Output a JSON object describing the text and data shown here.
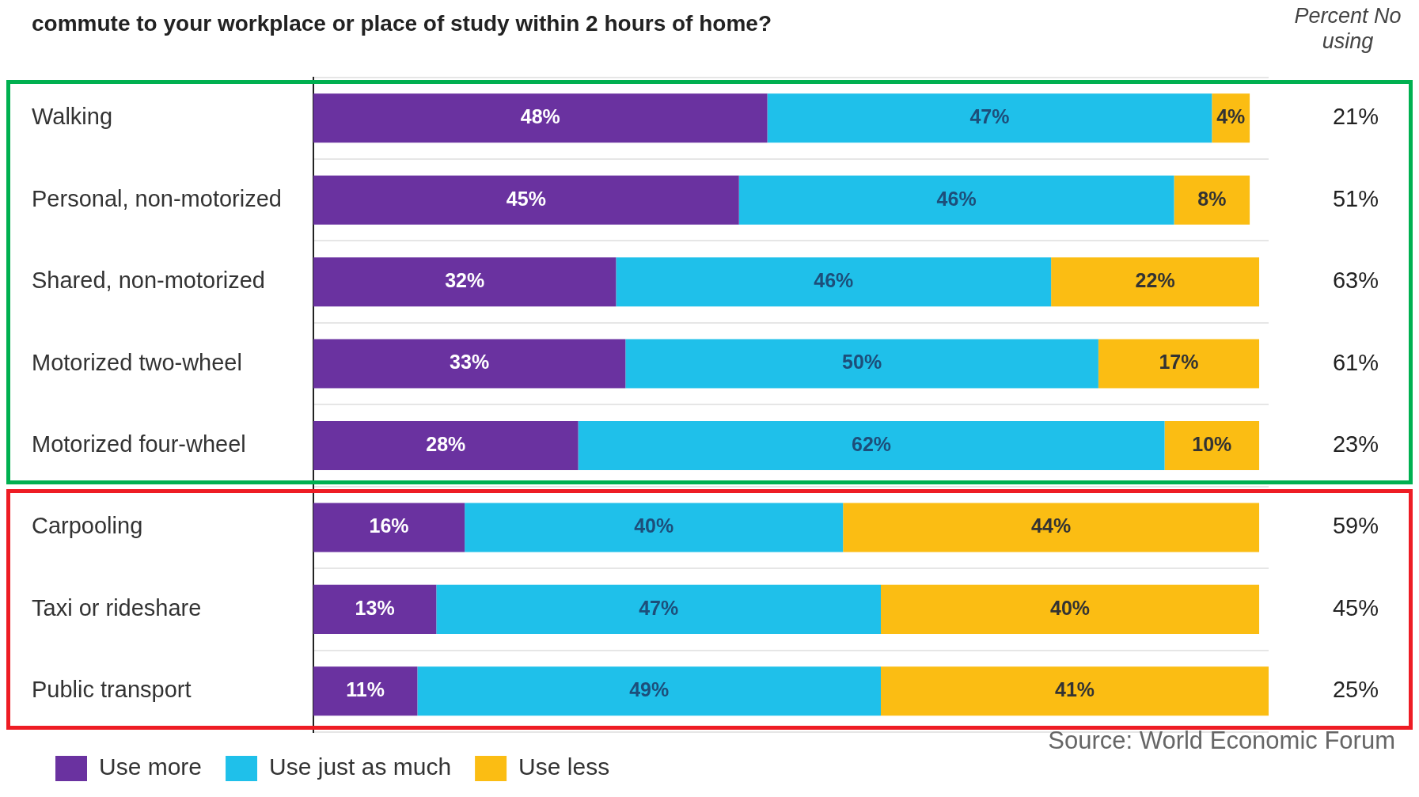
{
  "chart_data": {
    "type": "bar",
    "orientation": "horizontal",
    "stacked": true,
    "title": "commute to your workplace or place of study within 2 hours of home?",
    "categories": [
      "Walking",
      "Personal, non-motorized",
      "Shared, non-motorized",
      "Motorized two-wheel",
      "Motorized four-wheel",
      "Carpooling",
      "Taxi or rideshare",
      "Public transport"
    ],
    "series": [
      {
        "name": "Use more",
        "color": "#6a32a0",
        "values": [
          48,
          45,
          32,
          33,
          28,
          16,
          13,
          11
        ],
        "value_labels": [
          "48%",
          "45%",
          "32%",
          "33%",
          "28%",
          "16%",
          "13%",
          "11%"
        ]
      },
      {
        "name": "Use just as much",
        "color": "#1fc0ea",
        "values": [
          47,
          46,
          46,
          50,
          62,
          40,
          47,
          49
        ],
        "value_labels": [
          "47%",
          "46%",
          "46%",
          "50%",
          "62%",
          "40%",
          "47%",
          "49%"
        ]
      },
      {
        "name": "Use less",
        "color": "#fbbd13",
        "values": [
          4,
          8,
          22,
          17,
          10,
          44,
          40,
          41
        ],
        "value_labels": [
          "4%",
          "8%",
          "22%",
          "17%",
          "10%",
          "44%",
          "40%",
          "41%"
        ]
      }
    ],
    "tick_labels": "y",
    "grid": "y",
    "legend": "bottom left",
    "annotations": [
      "Percent No using",
      "21%",
      "51%",
      "63%",
      "61%",
      "23%",
      "59%",
      "45%",
      "25%",
      "Source: World Economic Forum"
    ]
  }
}
